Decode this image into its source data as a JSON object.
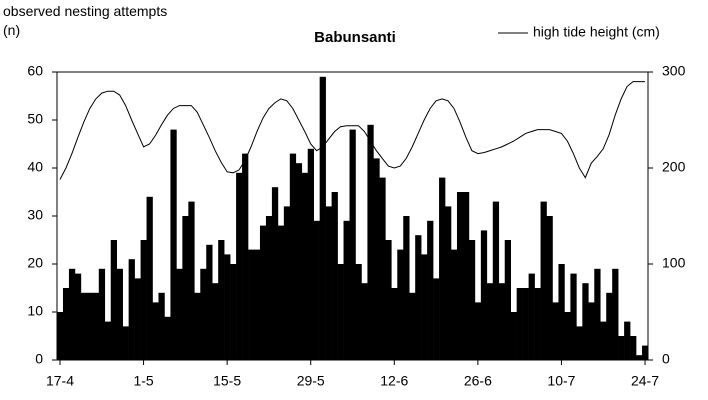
{
  "chart_data": {
    "type": "bar-line",
    "title": "Babunsanti",
    "ylabel": "observed nesting attempts (n)",
    "legend": "top-right",
    "categories": [
      "17-4",
      null,
      null,
      null,
      null,
      null,
      null,
      null,
      null,
      null,
      null,
      null,
      null,
      null,
      "1-5",
      null,
      null,
      null,
      null,
      null,
      null,
      null,
      null,
      null,
      null,
      null,
      null,
      null,
      "15-5",
      null,
      null,
      null,
      null,
      null,
      null,
      null,
      null,
      null,
      null,
      null,
      null,
      null,
      "29-5",
      null,
      null,
      null,
      null,
      null,
      null,
      null,
      null,
      null,
      null,
      null,
      null,
      null,
      "12-6",
      null,
      null,
      null,
      null,
      null,
      null,
      null,
      null,
      null,
      null,
      null,
      null,
      null,
      "26-6",
      null,
      null,
      null,
      null,
      null,
      null,
      null,
      null,
      null,
      null,
      null,
      null,
      null,
      "10-7",
      null,
      null,
      null,
      null,
      null,
      null,
      null,
      null,
      null,
      null,
      null,
      null,
      null,
      "24-7"
    ],
    "series": [
      {
        "type": "bar",
        "color": "#000000",
        "values": [
          10,
          15,
          19,
          18,
          14,
          14,
          14,
          19,
          8,
          25,
          19,
          7,
          21,
          17,
          25,
          34,
          12,
          14,
          9,
          48,
          19,
          30,
          33,
          14,
          19,
          24,
          16,
          25,
          22,
          20,
          39,
          43,
          23,
          23,
          28,
          30,
          36,
          28,
          32,
          43,
          41,
          39,
          44,
          29,
          59,
          32,
          35,
          20,
          29,
          48,
          20,
          16,
          49,
          42,
          38,
          25,
          15,
          23,
          30,
          14,
          26,
          22,
          29,
          17,
          38,
          32,
          23,
          35,
          35,
          25,
          12,
          27,
          16,
          33,
          16,
          25,
          10,
          15,
          15,
          18,
          15,
          33,
          30,
          12,
          20,
          10,
          18,
          7,
          16,
          12,
          19,
          8,
          14,
          19,
          5,
          8,
          5,
          1,
          3
        ]
      },
      {
        "type": "line",
        "name": "high tide height (cm)",
        "color": "#000000",
        "axis": "y2",
        "values": [
          188,
          200,
          215,
          232,
          248,
          262,
          272,
          278,
          280,
          280,
          276,
          265,
          250,
          236,
          222,
          225,
          234,
          245,
          255,
          262,
          265,
          265,
          265,
          258,
          245,
          232,
          218,
          206,
          196,
          195,
          198,
          208,
          222,
          238,
          252,
          262,
          268,
          272,
          270,
          262,
          250,
          238,
          225,
          218,
          222,
          230,
          238,
          243,
          244,
          244,
          244,
          238,
          228,
          218,
          210,
          202,
          200,
          202,
          210,
          222,
          236,
          250,
          262,
          270,
          272,
          270,
          262,
          248,
          232,
          218,
          215,
          216,
          218,
          220,
          222,
          225,
          228,
          232,
          236,
          238,
          240,
          240,
          240,
          238,
          236,
          228,
          215,
          200,
          190,
          205,
          212,
          220,
          235,
          255,
          272,
          285,
          290,
          290,
          290
        ]
      }
    ],
    "ylim": [
      0,
      60
    ],
    "yticks": [
      0,
      10,
      20,
      30,
      40,
      50,
      60
    ],
    "y2lim": [
      0,
      300
    ],
    "y2ticks": [
      0,
      100,
      200,
      300
    ],
    "grid": false
  }
}
